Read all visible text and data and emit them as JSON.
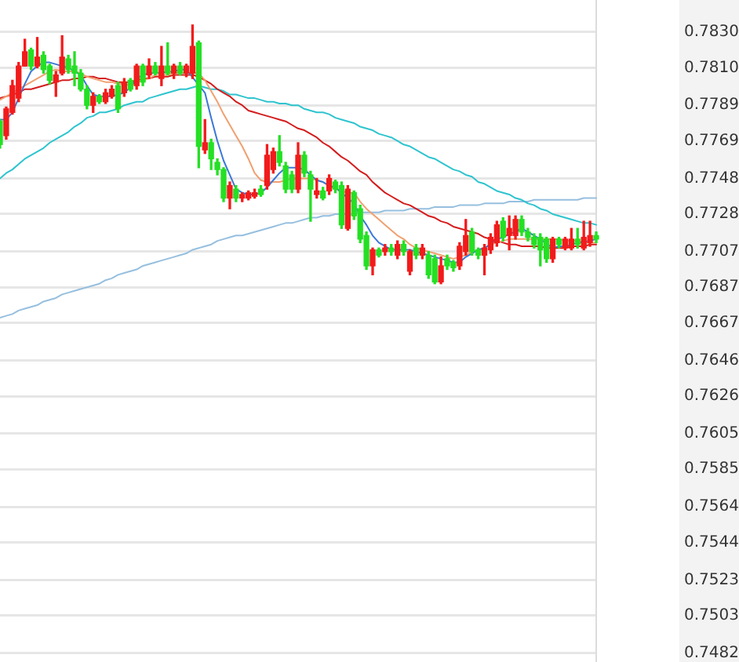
{
  "chart_data": {
    "type": "candlestick",
    "categories": [
      null,
      null,
      null,
      null,
      null,
      null,
      null,
      null,
      null,
      null,
      null,
      null,
      null,
      null,
      null,
      null,
      null,
      null,
      null,
      null,
      null,
      null,
      null,
      null,
      null,
      null,
      null,
      null,
      null,
      null,
      null,
      null,
      null,
      null,
      null,
      null,
      null,
      null,
      null,
      null,
      null,
      null,
      null,
      null,
      null,
      null,
      null,
      null,
      null,
      null,
      null,
      null,
      null,
      null,
      null,
      null,
      null,
      null,
      null,
      null,
      null,
      null,
      null,
      null,
      null,
      null,
      null,
      null,
      null,
      null,
      null,
      null,
      null,
      null,
      null,
      null,
      null,
      null,
      null,
      null,
      null,
      null,
      null,
      null,
      null,
      null,
      null,
      null,
      null,
      null,
      null,
      null,
      null,
      null,
      null,
      null,
      null
    ],
    "ohlc": [
      [
        0.778,
        0.7781,
        0.7765,
        0.7767
      ],
      [
        0.7772,
        0.7788,
        0.777,
        0.7787
      ],
      [
        0.7785,
        0.7803,
        0.7784,
        0.78
      ],
      [
        0.7793,
        0.7813,
        0.7791,
        0.7811
      ],
      [
        0.7811,
        0.7826,
        0.7811,
        0.7819
      ],
      [
        0.782,
        0.7821,
        0.7809,
        0.7811
      ],
      [
        0.7811,
        0.7827,
        0.781,
        0.7816
      ],
      [
        0.7817,
        0.7819,
        0.7807,
        0.7809
      ],
      [
        0.7811,
        0.7812,
        0.7801,
        0.7803
      ],
      [
        0.7802,
        0.7808,
        0.7794,
        0.7806
      ],
      [
        0.7807,
        0.7828,
        0.7806,
        0.7816
      ],
      [
        0.7815,
        0.7817,
        0.7807,
        0.7809
      ],
      [
        0.7811,
        0.7819,
        0.78,
        0.7807
      ],
      [
        0.7807,
        0.7809,
        0.7797,
        0.7798
      ],
      [
        0.7798,
        0.78,
        0.7787,
        0.7789
      ],
      [
        0.7789,
        0.7796,
        0.7785,
        0.7794
      ],
      [
        0.7794,
        0.7795,
        0.779,
        0.7791
      ],
      [
        0.7791,
        0.7798,
        0.779,
        0.7796
      ],
      [
        0.7794,
        0.78,
        0.7793,
        0.7798
      ],
      [
        0.78,
        0.7802,
        0.7785,
        0.7787
      ],
      [
        0.7796,
        0.7804,
        0.7794,
        0.7802
      ],
      [
        0.7803,
        0.7804,
        0.7797,
        0.7798
      ],
      [
        0.78,
        0.7812,
        0.7798,
        0.7811
      ],
      [
        0.7811,
        0.7812,
        0.78,
        0.7802
      ],
      [
        0.7806,
        0.7815,
        0.7804,
        0.7811
      ],
      [
        0.7811,
        0.7813,
        0.7806,
        0.7807
      ],
      [
        0.7804,
        0.7822,
        0.78,
        0.7811
      ],
      [
        0.7811,
        0.7824,
        0.7806,
        0.7807
      ],
      [
        0.7807,
        0.7812,
        0.7804,
        0.7811
      ],
      [
        0.7811,
        0.7813,
        0.7806,
        0.7807
      ],
      [
        0.7807,
        0.7812,
        0.7805,
        0.7811
      ],
      [
        0.7807,
        0.7834,
        0.7804,
        0.7822
      ],
      [
        0.7824,
        0.7825,
        0.7754,
        0.7766
      ],
      [
        0.7764,
        0.7781,
        0.7762,
        0.7768
      ],
      [
        0.7768,
        0.777,
        0.7753,
        0.7759
      ],
      [
        0.7757,
        0.7759,
        0.775,
        0.7753
      ],
      [
        0.7753,
        0.7754,
        0.7735,
        0.7737
      ],
      [
        0.7737,
        0.7746,
        0.7731,
        0.7744
      ],
      [
        0.7742,
        0.7744,
        0.7735,
        0.7737
      ],
      [
        0.7737,
        0.774,
        0.7735,
        0.7739
      ],
      [
        0.7737,
        0.7741,
        0.7736,
        0.774
      ],
      [
        0.7738,
        0.7742,
        0.7737,
        0.774
      ],
      [
        0.7742,
        0.7744,
        0.7738,
        0.7739
      ],
      [
        0.7744,
        0.7767,
        0.7742,
        0.7761
      ],
      [
        0.7753,
        0.7765,
        0.7751,
        0.7763
      ],
      [
        0.7763,
        0.7772,
        0.7755,
        0.7757
      ],
      [
        0.7755,
        0.7757,
        0.774,
        0.7742
      ],
      [
        0.775,
        0.7752,
        0.774,
        0.7742
      ],
      [
        0.7742,
        0.7768,
        0.774,
        0.7761
      ],
      [
        0.7761,
        0.7763,
        0.7749,
        0.7751
      ],
      [
        0.775,
        0.7752,
        0.7724,
        0.7742
      ],
      [
        0.7739,
        0.7748,
        0.7737,
        0.7741
      ],
      [
        0.7741,
        0.7743,
        0.7736,
        0.7737
      ],
      [
        0.7741,
        0.775,
        0.7739,
        0.7748
      ],
      [
        0.7746,
        0.7747,
        0.774,
        0.7742
      ],
      [
        0.7744,
        0.7746,
        0.772,
        0.7722
      ],
      [
        0.772,
        0.7744,
        0.7719,
        0.7742
      ],
      [
        0.774,
        0.7741,
        0.7725,
        0.7727
      ],
      [
        0.7731,
        0.7733,
        0.7712,
        0.7714
      ],
      [
        0.7716,
        0.7718,
        0.7697,
        0.7699
      ],
      [
        0.7699,
        0.7709,
        0.7694,
        0.7708
      ],
      [
        0.7708,
        0.7709,
        0.7704,
        0.7705
      ],
      [
        0.7707,
        0.7711,
        0.7705,
        0.7709
      ],
      [
        0.7709,
        0.7711,
        0.7705,
        0.7707
      ],
      [
        0.7705,
        0.7713,
        0.7703,
        0.7711
      ],
      [
        0.7711,
        0.7713,
        0.7705,
        0.7707
      ],
      [
        0.7696,
        0.7708,
        0.7694,
        0.7707
      ],
      [
        0.7709,
        0.7711,
        0.7703,
        0.7705
      ],
      [
        0.7705,
        0.7711,
        0.7703,
        0.7709
      ],
      [
        0.7705,
        0.7707,
        0.7692,
        0.7694
      ],
      [
        0.7703,
        0.7705,
        0.7689,
        0.769
      ],
      [
        0.769,
        0.7704,
        0.7689,
        0.7699
      ],
      [
        0.7703,
        0.7705,
        0.7697,
        0.7699
      ],
      [
        0.7701,
        0.7702,
        0.7696,
        0.7698
      ],
      [
        0.7699,
        0.7712,
        0.7697,
        0.771
      ],
      [
        0.7707,
        0.7725,
        0.7705,
        0.7716
      ],
      [
        0.7718,
        0.772,
        0.7705,
        0.7707
      ],
      [
        0.7708,
        0.7709,
        0.7703,
        0.7705
      ],
      [
        0.7705,
        0.7711,
        0.7694,
        0.7709
      ],
      [
        0.7708,
        0.7717,
        0.7706,
        0.7715
      ],
      [
        0.7712,
        0.7724,
        0.771,
        0.7722
      ],
      [
        0.7724,
        0.7726,
        0.7713,
        0.7715
      ],
      [
        0.7716,
        0.7727,
        0.7708,
        0.772
      ],
      [
        0.7716,
        0.7727,
        0.7714,
        0.7725
      ],
      [
        0.7725,
        0.7727,
        0.7716,
        0.7718
      ],
      [
        0.7718,
        0.772,
        0.7713,
        0.7715
      ],
      [
        0.7715,
        0.7717,
        0.7709,
        0.7711
      ],
      [
        0.7715,
        0.7717,
        0.7699,
        0.7708
      ],
      [
        0.7714,
        0.7715,
        0.7701,
        0.7703
      ],
      [
        0.7703,
        0.7715,
        0.7701,
        0.7714
      ],
      [
        0.7714,
        0.7715,
        0.7709,
        0.7711
      ],
      [
        0.7709,
        0.7715,
        0.7708,
        0.7714
      ],
      [
        0.7709,
        0.772,
        0.7708,
        0.7714
      ],
      [
        0.7714,
        0.772,
        0.7709,
        0.7711
      ],
      [
        0.7709,
        0.7724,
        0.7708,
        0.7715
      ],
      [
        0.7712,
        0.7724,
        0.771,
        0.7716
      ],
      [
        0.7716,
        0.7718,
        0.7712,
        0.7714
      ]
    ],
    "colors": [
      "#24e024",
      "#f21b1b",
      "#f21b1b",
      "#f21b1b",
      "#f21b1b",
      "#24e024",
      "#f21b1b",
      "#24e024",
      "#24e024",
      "#f21b1b",
      "#f21b1b",
      "#24e024",
      "#24e024",
      "#24e024",
      "#24e024",
      "#f21b1b",
      "#24e024",
      "#f21b1b",
      "#f21b1b",
      "#24e024",
      "#f21b1b",
      "#24e024",
      "#f21b1b",
      "#24e024",
      "#f21b1b",
      "#24e024",
      "#f21b1b",
      "#24e024",
      "#f21b1b",
      "#24e024",
      "#f21b1b",
      "#f21b1b",
      "#24e024",
      "#f21b1b",
      "#24e024",
      "#24e024",
      "#24e024",
      "#f21b1b",
      "#24e024",
      "#f21b1b",
      "#f21b1b",
      "#f21b1b",
      "#24e024",
      "#f21b1b",
      "#f21b1b",
      "#24e024",
      "#24e024",
      "#24e024",
      "#f21b1b",
      "#24e024",
      "#24e024",
      "#f21b1b",
      "#24e024",
      "#f21b1b",
      "#24e024",
      "#24e024",
      "#f21b1b",
      "#24e024",
      "#24e024",
      "#24e024",
      "#f21b1b",
      "#24e024",
      "#f21b1b",
      "#24e024",
      "#f21b1b",
      "#24e024",
      "#f21b1b",
      "#24e024",
      "#f21b1b",
      "#24e024",
      "#24e024",
      "#f21b1b",
      "#24e024",
      "#24e024",
      "#f21b1b",
      "#f21b1b",
      "#24e024",
      "#24e024",
      "#f21b1b",
      "#f21b1b",
      "#f21b1b",
      "#24e024",
      "#f21b1b",
      "#f21b1b",
      "#24e024",
      "#24e024",
      "#24e024",
      "#24e024",
      "#24e024",
      "#f21b1b",
      "#24e024",
      "#f21b1b",
      "#f21b1b",
      "#24e024",
      "#f21b1b",
      "#f21b1b",
      "#24e024"
    ],
    "series": [
      {
        "type": "line",
        "color": "#3a78d8",
        "values": [
          0.7781,
          0.7781,
          0.7785,
          0.7793,
          0.7801,
          0.7808,
          0.7811,
          0.7813,
          0.7813,
          0.7812,
          0.7811,
          0.781,
          0.7808,
          0.7806,
          0.78,
          0.7795,
          0.7794,
          0.7794,
          0.7794,
          0.7795,
          0.7796,
          0.7799,
          0.7804,
          0.7806,
          0.7807,
          0.7807,
          null,
          null,
          0.7808,
          0.7809,
          0.7809,
          null,
          null,
          0.7796,
          0.7782,
          0.7769,
          0.7758,
          0.775,
          0.7742,
          0.774,
          0.7739,
          0.7739,
          0.774,
          0.7743,
          0.7747,
          0.7751,
          0.7754,
          0.7754,
          0.7754,
          0.7753,
          0.775,
          0.7747,
          0.7746,
          0.7744,
          0.7743,
          null,
          null,
          0.7734,
          0.7727,
          0.7722,
          0.7716,
          0.7712,
          0.771,
          0.7708,
          0.7708,
          0.7708,
          0.7708,
          0.7707,
          0.7706,
          0.7705,
          0.7704,
          0.7703,
          0.7702,
          0.7701,
          0.7701,
          0.7704,
          0.7706,
          0.7708,
          0.7709,
          0.7711,
          0.7714,
          0.7715,
          0.7717,
          0.7718,
          0.772,
          0.7718,
          0.7716,
          0.7714,
          null,
          0.7709,
          0.771,
          0.771,
          0.7711,
          0.7712,
          null,
          0.7713,
          0.7714
        ]
      },
      {
        "type": "line",
        "color": "#f0a070",
        "values": [
          0.7792,
          0.7794,
          0.7796,
          0.7798,
          0.78,
          0.7802,
          0.7804,
          0.7806,
          0.7808,
          0.7809,
          0.7808,
          0.7808,
          0.7808,
          0.7807,
          0.7805,
          0.7804,
          0.7803,
          0.7802,
          0.7802,
          0.7801,
          0.7801,
          0.78,
          0.7802,
          0.7803,
          0.7804,
          0.7806,
          0.7806,
          0.7806,
          0.7807,
          0.7807,
          0.7807,
          0.7807,
          0.7807,
          0.7803,
          0.7797,
          0.7791,
          0.7784,
          0.7778,
          0.7772,
          0.7766,
          0.7759,
          0.7751,
          0.7747,
          0.7746,
          0.7746,
          0.7746,
          0.7747,
          0.7748,
          0.7748,
          0.7748,
          0.7748,
          0.7747,
          0.7746,
          0.7744,
          0.7742,
          0.7741,
          0.774,
          0.774,
          0.7735,
          0.7731,
          0.7728,
          0.7725,
          0.7722,
          0.7719,
          0.7716,
          0.7714,
          0.7711,
          0.7709,
          0.7708,
          0.7707,
          0.7706,
          0.7705,
          0.7704,
          0.7703,
          0.7704,
          0.7705,
          0.7707,
          0.7708,
          0.7709,
          0.7711,
          0.7712,
          0.7713,
          0.7714,
          0.7714,
          0.7714,
          0.7714,
          0.7714,
          null,
          null,
          0.7714,
          0.7714,
          0.7713,
          0.7713,
          0.7713,
          0.7712,
          0.7712,
          0.7712
        ]
      },
      {
        "type": "line",
        "color": "#d41c1c",
        "values": [
          0.7793,
          0.7794,
          0.7795,
          0.7796,
          0.7798,
          0.7798,
          0.7799,
          0.78,
          0.7801,
          0.7802,
          0.7803,
          0.7803,
          0.7804,
          0.7804,
          0.7805,
          0.7805,
          0.7804,
          0.7804,
          0.7803,
          0.7802,
          0.7802,
          0.7802,
          0.7803,
          0.7804,
          0.7804,
          0.7805,
          0.7805,
          0.7805,
          0.7806,
          0.7806,
          0.7806,
          0.7806,
          0.7805,
          0.7803,
          0.7801,
          0.7798,
          0.7796,
          0.7794,
          0.7791,
          0.7789,
          0.7786,
          0.7785,
          0.7784,
          0.7783,
          0.7782,
          0.7781,
          0.778,
          0.7778,
          0.7776,
          0.7775,
          0.7773,
          0.7771,
          0.7768,
          0.7766,
          0.7763,
          0.776,
          0.7758,
          0.7755,
          0.7752,
          0.775,
          0.7746,
          0.7743,
          0.774,
          0.7738,
          0.7736,
          0.7734,
          0.7733,
          0.7731,
          0.7729,
          0.7727,
          0.7726,
          0.7724,
          0.7723,
          0.7721,
          0.772,
          0.7719,
          0.7718,
          0.7717,
          0.7715,
          0.7714,
          0.7713,
          0.7712,
          0.7711,
          0.7711,
          0.771,
          0.771,
          0.771,
          0.771,
          0.7709,
          0.7709,
          0.7709,
          0.7709,
          0.771,
          0.771,
          0.771,
          0.7711,
          0.7711
        ]
      },
      {
        "type": "line",
        "color": "#2ec4cf",
        "values": [
          0.7748,
          0.7751,
          0.7753,
          0.7756,
          0.7759,
          0.7761,
          0.7763,
          0.7765,
          0.7768,
          0.777,
          0.7772,
          0.7774,
          0.7777,
          0.7779,
          0.7782,
          0.7783,
          0.7785,
          0.7785,
          0.7786,
          0.7787,
          0.7789,
          0.779,
          0.7791,
          0.7791,
          0.7793,
          0.7794,
          0.7795,
          0.7796,
          0.7797,
          0.7798,
          0.7798,
          0.7799,
          0.78,
          0.7799,
          0.7798,
          0.7798,
          0.7797,
          0.7795,
          0.7795,
          0.7794,
          0.7793,
          0.7793,
          0.7792,
          0.7791,
          0.7791,
          0.779,
          0.779,
          0.7789,
          0.7789,
          0.7787,
          0.7786,
          0.7785,
          0.7785,
          0.7784,
          0.7782,
          0.7781,
          0.778,
          0.7779,
          0.7777,
          0.7776,
          0.7775,
          0.7773,
          0.7772,
          0.7771,
          0.7769,
          0.7767,
          0.7766,
          0.7764,
          0.7762,
          0.776,
          0.7759,
          0.7757,
          0.7755,
          0.7753,
          0.7752,
          0.775,
          0.7749,
          0.7746,
          0.7745,
          0.7743,
          0.7741,
          0.774,
          0.7739,
          0.7737,
          0.7736,
          0.7734,
          0.7733,
          0.7731,
          0.773,
          0.7728,
          0.7727,
          0.7726,
          0.7725,
          0.7724,
          0.7723,
          0.7723,
          0.7722
        ]
      },
      {
        "type": "line",
        "color": "#96bfdf",
        "values": [
          0.767,
          0.7671,
          0.7672,
          0.7674,
          0.7675,
          0.7676,
          0.7677,
          0.7679,
          0.768,
          0.7681,
          0.7683,
          0.7684,
          0.7685,
          0.7686,
          0.7687,
          0.7688,
          0.7689,
          0.7691,
          0.7692,
          0.7694,
          0.7695,
          0.7696,
          0.7697,
          0.7699,
          0.77,
          0.7701,
          0.7702,
          0.7703,
          0.7704,
          0.7705,
          0.7706,
          0.7708,
          0.7709,
          0.771,
          0.7711,
          0.7713,
          0.7714,
          0.7715,
          0.7716,
          0.7716,
          0.7717,
          0.7718,
          0.7719,
          0.772,
          0.7721,
          0.7722,
          0.7723,
          0.7723,
          0.7724,
          0.7725,
          0.7726,
          0.7726,
          0.7727,
          0.7727,
          0.7728,
          0.7728,
          null,
          0.7728,
          0.7729,
          0.7729,
          0.7729,
          0.7729,
          0.773,
          0.773,
          0.773,
          0.773,
          0.7731,
          0.7731,
          0.7731,
          0.7731,
          0.7732,
          0.7732,
          0.7732,
          0.7732,
          0.7733,
          0.7733,
          0.7733,
          0.7733,
          0.7734,
          0.7734,
          0.7734,
          0.7734,
          0.7735,
          0.7735,
          0.7735,
          0.7735,
          0.7736,
          0.7736,
          0.7736,
          0.7736,
          0.7736,
          0.7736,
          0.7736,
          0.7736,
          0.7737,
          0.7737,
          0.7737
        ]
      }
    ],
    "ylim": [
      0.7477,
      0.7848
    ],
    "yticks": [
      {
        "value": 0.783,
        "label": "0.7830"
      },
      {
        "value": 0.781,
        "label": "0.7810"
      },
      0.7789,
      0.7769,
      0.7748,
      0.7728,
      0.7707,
      0.7687,
      0.7667,
      0.7646,
      0.7626,
      0.7605,
      0.7585,
      0.7564,
      0.7544,
      0.7523,
      0.7503,
      0.7482
    ],
    "grid": "y",
    "tick_labels": "y"
  }
}
